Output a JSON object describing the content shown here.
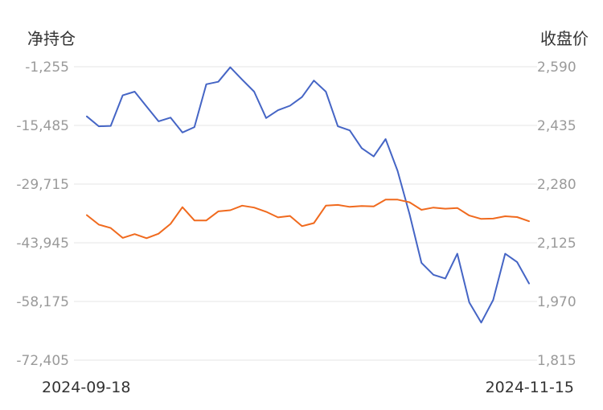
{
  "chart_data": {
    "type": "line",
    "left_axis_title": "净持仓",
    "right_axis_title": "收盘价",
    "left_ticks": [
      "-1,255",
      "-15,485",
      "-29,715",
      "-43,945",
      "-58,175",
      "-72,405"
    ],
    "right_ticks": [
      "2,590",
      "2,435",
      "2,280",
      "2,125",
      "1,970",
      "1,815"
    ],
    "ylim_left": [
      -72405,
      -1255
    ],
    "ylim_right": [
      1815,
      2590
    ],
    "x_start_label": "2024-09-18",
    "x_end_label": "2024-11-15",
    "grid": true,
    "series": [
      {
        "axis": "left",
        "color": "#4565c5",
        "values": [
          -13300,
          -15700,
          -15600,
          -8200,
          -7300,
          -10900,
          -14500,
          -13600,
          -17200,
          -15900,
          -5500,
          -4900,
          -1400,
          -4400,
          -7300,
          -13700,
          -11800,
          -10700,
          -8600,
          -4600,
          -7300,
          -15700,
          -16700,
          -21000,
          -23000,
          -18800,
          -26500,
          -37000,
          -48800,
          -51700,
          -52600,
          -46600,
          -58400,
          -63300,
          -57800,
          -46600,
          -48600,
          -53800
        ]
      },
      {
        "axis": "right",
        "color": "#f06a1e",
        "values": [
          2198,
          2173,
          2164,
          2138,
          2148,
          2137,
          2149,
          2175,
          2219,
          2184,
          2184,
          2208,
          2211,
          2223,
          2218,
          2207,
          2192,
          2196,
          2169,
          2177,
          2223,
          2225,
          2220,
          2222,
          2221,
          2239,
          2239,
          2232,
          2212,
          2218,
          2215,
          2217,
          2197,
          2188,
          2189,
          2195,
          2193,
          2182
        ]
      }
    ]
  }
}
